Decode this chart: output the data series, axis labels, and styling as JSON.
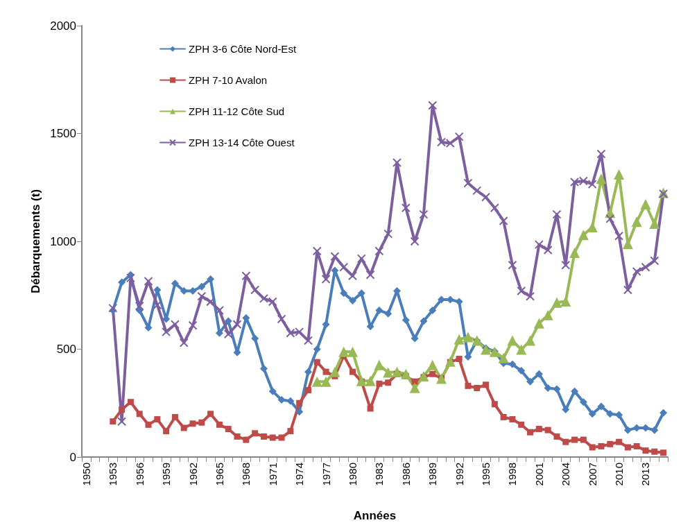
{
  "chart_data": {
    "type": "line",
    "xlabel": "Années",
    "ylabel": "Débarquements (t)",
    "categories": [
      "1950",
      null,
      null,
      "1953",
      null,
      null,
      "1956",
      null,
      null,
      "1959",
      null,
      null,
      "1962",
      null,
      null,
      "1965",
      null,
      null,
      "1968",
      null,
      null,
      "1971",
      null,
      null,
      "1974",
      null,
      null,
      "1977",
      null,
      null,
      "1980",
      null,
      null,
      "1983",
      null,
      null,
      "1986",
      null,
      null,
      "1989",
      null,
      null,
      "1992",
      null,
      null,
      "1995",
      null,
      null,
      "1998",
      null,
      null,
      "2001",
      null,
      null,
      "2004",
      null,
      null,
      "2007",
      null,
      null,
      "2010",
      null,
      null,
      "2013",
      null,
      null
    ],
    "ylim": [
      0,
      2000
    ],
    "yticks": [
      0,
      500,
      1000,
      1500,
      2000
    ],
    "grid": false,
    "legend": "top left",
    "line_style": "solid",
    "series": [
      {
        "name": "ZPH 3-6 Côte Nord-Est",
        "color": "#4a7ebb",
        "marker": "diamond",
        "values": [
          null,
          null,
          null,
          680,
          810,
          845,
          680,
          600,
          775,
          640,
          805,
          770,
          770,
          790,
          825,
          575,
          630,
          485,
          645,
          550,
          410,
          305,
          265,
          260,
          210,
          395,
          500,
          615,
          865,
          760,
          725,
          760,
          605,
          680,
          665,
          770,
          635,
          550,
          630,
          680,
          730,
          730,
          720,
          465,
          540,
          505,
          490,
          435,
          430,
          400,
          350,
          385,
          320,
          315,
          220,
          305,
          255,
          200,
          235,
          200,
          195,
          125,
          135,
          135,
          125,
          205
        ]
      },
      {
        "name": "ZPH 7-10 Avalon",
        "color": "#be4b48",
        "marker": "square",
        "values": [
          null,
          null,
          null,
          165,
          220,
          255,
          200,
          150,
          175,
          120,
          185,
          135,
          155,
          160,
          200,
          150,
          130,
          95,
          80,
          110,
          95,
          90,
          90,
          120,
          250,
          310,
          440,
          395,
          375,
          470,
          395,
          350,
          225,
          340,
          345,
          385,
          375,
          350,
          370,
          385,
          365,
          440,
          455,
          330,
          320,
          335,
          245,
          185,
          175,
          150,
          115,
          130,
          125,
          95,
          70,
          80,
          80,
          45,
          50,
          60,
          70,
          45,
          50,
          30,
          25,
          20
        ]
      },
      {
        "name": "ZPH 11-12 Côte Sud",
        "color": "#98b954",
        "marker": "triangle",
        "values": [
          null,
          null,
          null,
          null,
          null,
          null,
          null,
          null,
          null,
          null,
          null,
          null,
          null,
          null,
          null,
          null,
          null,
          null,
          null,
          null,
          null,
          null,
          null,
          null,
          null,
          null,
          350,
          350,
          395,
          488,
          488,
          353,
          353,
          427,
          392,
          395,
          385,
          321,
          375,
          427,
          363,
          443,
          546,
          556,
          540,
          498,
          488,
          459,
          540,
          498,
          540,
          620,
          658,
          716,
          722,
          947,
          1030,
          1066,
          1290,
          1133,
          1310,
          988,
          1091,
          1172,
          1082,
          1225
        ]
      },
      {
        "name": "ZPH 13-14 Côte Ouest",
        "color": "#7d5fa0",
        "marker": "cross",
        "values": [
          null,
          null,
          null,
          690,
          165,
          830,
          700,
          815,
          705,
          580,
          615,
          530,
          610,
          745,
          720,
          680,
          570,
          615,
          840,
          775,
          735,
          720,
          640,
          575,
          580,
          540,
          955,
          825,
          930,
          880,
          840,
          920,
          845,
          955,
          1035,
          1365,
          1155,
          1000,
          1125,
          1630,
          1460,
          1455,
          1485,
          1270,
          1235,
          1205,
          1155,
          1095,
          890,
          770,
          745,
          985,
          960,
          1125,
          890,
          1275,
          1280,
          1265,
          1405,
          1105,
          1025,
          775,
          860,
          880,
          910,
          1220
        ]
      }
    ]
  }
}
